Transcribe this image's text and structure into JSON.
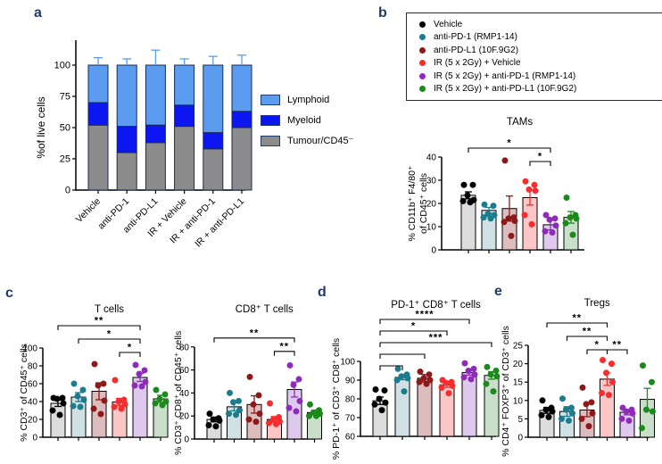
{
  "panel_letters": {
    "a": "a",
    "b": "b",
    "c": "c",
    "d": "d",
    "e": "e"
  },
  "colors": {
    "panel_letter": "#1e3a6e",
    "axis": "#000000",
    "groups": [
      {
        "key": "vehicle",
        "dot": "#000000",
        "fill": "#dcdcdc"
      },
      {
        "key": "anti-pd-1",
        "dot": "#1b7c8e",
        "fill": "#cfe1e4"
      },
      {
        "key": "anti-pd-l1",
        "dot": "#8f1818",
        "fill": "#dcbcbc"
      },
      {
        "key": "ir-vehicle",
        "dot": "#f72c2c",
        "fill": "#fbc6c6"
      },
      {
        "key": "ir-anti-pd-1",
        "dot": "#8e2bb8",
        "fill": "#dfc8ee"
      },
      {
        "key": "ir-anti-pd-l1",
        "dot": "#1b8a1b",
        "fill": "#c9dfc9"
      }
    ]
  },
  "legend_a": {
    "items": [
      {
        "label": "Lymphoid",
        "color": "#5b9cf0"
      },
      {
        "label": "Myeloid",
        "color": "#0b16f0"
      },
      {
        "label": "Tumour/CD45⁻",
        "color": "#8c8c8c"
      }
    ]
  },
  "legend_b": {
    "items": [
      {
        "label": "Vehicle",
        "color": "#000000"
      },
      {
        "label": "anti-PD-1 (RMP1-14)",
        "color": "#1b7c8e"
      },
      {
        "label": "anti-PD-L1 (10F.9G2)",
        "color": "#8f1818"
      },
      {
        "label": "IR (5 x 2Gy) + Vehicle",
        "color": "#f72c2c"
      },
      {
        "label": "IR (5 x 2Gy) + anti-PD-1 (RMP1-14)",
        "color": "#8e2bb8"
      },
      {
        "label": "IR (5 x 2Gy) + anti-PD-L1 (10F.9G2)",
        "color": "#1b8a1b"
      }
    ]
  },
  "chart_data": [
    {
      "id": "a",
      "type": "stacked-bar",
      "title": "",
      "ylabel_lines": [
        "%of live cells"
      ],
      "ylim": [
        0,
        100
      ],
      "yticks": [
        0,
        25,
        50,
        75,
        100
      ],
      "categories": [
        "Vehicle",
        "anti-PD-1",
        "anti-PD-L1",
        "IR + Vehicle",
        "IR + anti-PD-1",
        "IR + anti-PD-L1"
      ],
      "series": [
        {
          "name": "Tumour/CD45⁻",
          "color": "#8c8c8c",
          "values": [
            52,
            30,
            38,
            51,
            33,
            50
          ],
          "errors": [
            8,
            8,
            3,
            8,
            5,
            5
          ]
        },
        {
          "name": "Myeloid",
          "color": "#0b16f0",
          "values": [
            18,
            21,
            14,
            17,
            13,
            13
          ],
          "errors": [
            3,
            2,
            2,
            3,
            3,
            4
          ]
        },
        {
          "name": "Lymphoid",
          "color": "#5b9cf0",
          "values": [
            30,
            49,
            48,
            32,
            54,
            37
          ],
          "errors": [
            6,
            5,
            12,
            5,
            7,
            8
          ]
        }
      ]
    },
    {
      "id": "b",
      "type": "bar-scatter",
      "title": "TAMs",
      "ylabel_lines": [
        "% CD11b⁺ F4/80⁺",
        "of CD45⁺ cells"
      ],
      "ylim": [
        0,
        40
      ],
      "yticks": [
        0,
        10,
        20,
        30,
        40
      ],
      "bars": [
        23.5,
        17,
        17.8,
        22.5,
        10.8,
        14
      ],
      "errors": [
        1.5,
        1.3,
        5.4,
        3.2,
        2.2,
        2.5
      ],
      "dots": [
        [
          28,
          28,
          23.5,
          21.5,
          21,
          20.5
        ],
        [
          19.5,
          19,
          15.5,
          15,
          14,
          13.5
        ],
        [
          38.5,
          14,
          13.5,
          12.5,
          12,
          6
        ],
        [
          29.5,
          28,
          26,
          25.5,
          15,
          11
        ],
        [
          15,
          13.5,
          13,
          10.5,
          8,
          7.5
        ],
        [
          22.5,
          15,
          14,
          13.5,
          11.5,
          6.5
        ]
      ],
      "brackets": [
        {
          "from": 3,
          "to": 4,
          "label": "*",
          "row": 0
        },
        {
          "from": 0,
          "to": 4,
          "label": "*",
          "row": 1
        }
      ]
    },
    {
      "id": "c1",
      "type": "bar-scatter",
      "title": "T cells",
      "ylabel_lines": [
        "% CD3⁺ of CD45⁺ cells"
      ],
      "ylim": [
        0,
        100
      ],
      "yticks": [
        0,
        20,
        40,
        60,
        80,
        100
      ],
      "bars": [
        38,
        45,
        51.5,
        39.5,
        67,
        43
      ],
      "errors": [
        3.5,
        5,
        9.5,
        4,
        4.5,
        4
      ],
      "dots": [
        [
          44,
          44,
          43,
          38,
          30,
          25
        ],
        [
          60,
          53,
          46,
          42,
          35,
          34
        ],
        [
          82,
          60,
          58,
          41,
          32,
          26
        ],
        [
          64,
          42,
          40,
          37,
          34,
          32
        ],
        [
          81,
          75,
          71,
          62,
          58,
          57
        ],
        [
          53,
          48,
          43,
          40,
          38,
          36
        ]
      ],
      "brackets": [
        {
          "from": 3,
          "to": 4,
          "label": "*",
          "row": 0
        },
        {
          "from": 1,
          "to": 4,
          "label": "*",
          "row": 1
        },
        {
          "from": 0,
          "to": 4,
          "label": "**",
          "row": 2
        }
      ]
    },
    {
      "id": "c2",
      "type": "bar-scatter",
      "title": "CD8⁺ T cells",
      "ylabel_lines": [
        "% CD3⁺ CD8⁺ of CD45⁺ cells"
      ],
      "ylim": [
        0,
        80
      ],
      "yticks": [
        0,
        20,
        40,
        60,
        80
      ],
      "bars": [
        17,
        28,
        30,
        17,
        43,
        23
      ],
      "errors": [
        2,
        3.5,
        7.5,
        2.5,
        6.5,
        2
      ],
      "dots": [
        [
          22,
          18,
          17,
          16,
          12,
          11
        ],
        [
          40,
          33,
          32,
          25,
          22,
          21
        ],
        [
          54,
          38,
          30,
          22,
          17,
          15
        ],
        [
          31,
          19,
          17,
          15,
          14,
          13
        ],
        [
          64,
          52,
          47,
          33,
          27,
          24
        ],
        [
          30,
          25,
          23,
          22,
          20,
          20
        ]
      ],
      "brackets": [
        {
          "from": 3,
          "to": 4,
          "label": "**",
          "row": 0
        },
        {
          "from": 0,
          "to": 4,
          "label": "**",
          "row": 1
        }
      ]
    },
    {
      "id": "d",
      "type": "bar-scatter",
      "title": "PD-1⁺ CD8⁺ T cells",
      "ylabel_lines": [
        "% PD-1⁺ of CD3⁺ CD8⁺ cells"
      ],
      "ylim": [
        60,
        100
      ],
      "yticks": [
        60,
        70,
        80,
        90,
        100
      ],
      "bars": [
        79,
        91.5,
        91,
        87.5,
        94,
        92.5
      ],
      "errors": [
        2,
        1.3,
        2,
        1.3,
        1.3,
        2
      ],
      "dots": [
        [
          85,
          84.5,
          80,
          78,
          77,
          74
        ],
        [
          96,
          93,
          92,
          91,
          90,
          84
        ],
        [
          94.5,
          93,
          91,
          90,
          89,
          88
        ],
        [
          90,
          89,
          88.5,
          87,
          86,
          83
        ],
        [
          99,
          96,
          95,
          93,
          91.5,
          90.5
        ],
        [
          97,
          95,
          93,
          92,
          88,
          84
        ]
      ],
      "brackets": [
        {
          "from": 0,
          "to": 1,
          "label": "",
          "row": 0
        },
        {
          "from": 0,
          "to": 2,
          "label": "",
          "row": 1
        },
        {
          "from": 0,
          "to": 5,
          "label": "***",
          "row": 2
        },
        {
          "from": 0,
          "to": 3,
          "label": "*",
          "row": 3
        },
        {
          "from": 0,
          "to": 4,
          "label": "****",
          "row": 4
        }
      ]
    },
    {
      "id": "e",
      "type": "bar-scatter",
      "title": "Tregs",
      "ylabel_lines": [
        "% CD4⁺ FOXP3⁺ of CD3⁺ cells"
      ],
      "ylim": [
        0,
        25
      ],
      "yticks": [
        0,
        5,
        10,
        15,
        20,
        25
      ],
      "bars": [
        7.3,
        7,
        7.4,
        15.8,
        6.8,
        10.3
      ],
      "errors": [
        0.8,
        1.3,
        1.8,
        1.7,
        0.7,
        3
      ],
      "dots": [
        [
          10,
          8,
          7.5,
          7,
          6,
          5.5
        ],
        [
          10.5,
          8,
          7.5,
          6.5,
          5,
          4.5
        ],
        [
          13.5,
          9.5,
          9,
          6.5,
          5,
          3
        ],
        [
          21,
          20,
          17.5,
          15,
          12,
          11.5
        ],
        [
          8,
          7.5,
          7,
          6.5,
          5,
          4.5
        ],
        [
          19.5,
          15,
          7.5,
          7,
          2.5
        ]
      ],
      "brackets": [
        {
          "from": 2,
          "to": 3,
          "label": "*",
          "row": 0
        },
        {
          "from": 3,
          "to": 4,
          "label": "**",
          "row": 0
        },
        {
          "from": 1,
          "to": 3,
          "label": "**",
          "row": 1
        },
        {
          "from": 0,
          "to": 3,
          "label": "**",
          "row": 2
        }
      ]
    }
  ]
}
